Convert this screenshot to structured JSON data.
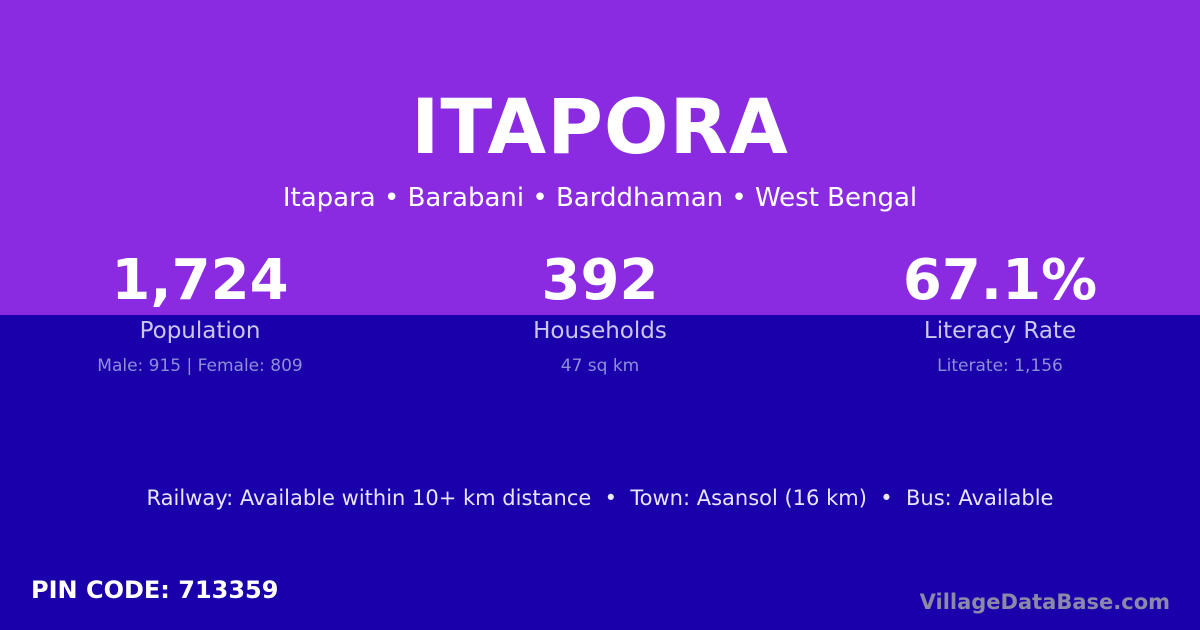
{
  "title": "ITAPORA",
  "subtitle": "Itapara • Barabani • Barddhaman • West Bengal",
  "stats": [
    {
      "value": "1,724",
      "label": "Population",
      "detail": "Male: 915 | Female: 809"
    },
    {
      "value": "392",
      "label": "Households",
      "detail": "47 sq km"
    },
    {
      "value": "67.1%",
      "label": "Literacy Rate",
      "detail": "Literate: 1,156"
    }
  ],
  "info": "Railway: Available within 10+ km distance  •  Town: Asansol (16 km)  •  Bus: Available",
  "pin": "PIN CODE: 713359",
  "brand": "VillageDataBase.com",
  "colors": {
    "top": "#8a2be2",
    "bottom": "#1a00aa"
  }
}
